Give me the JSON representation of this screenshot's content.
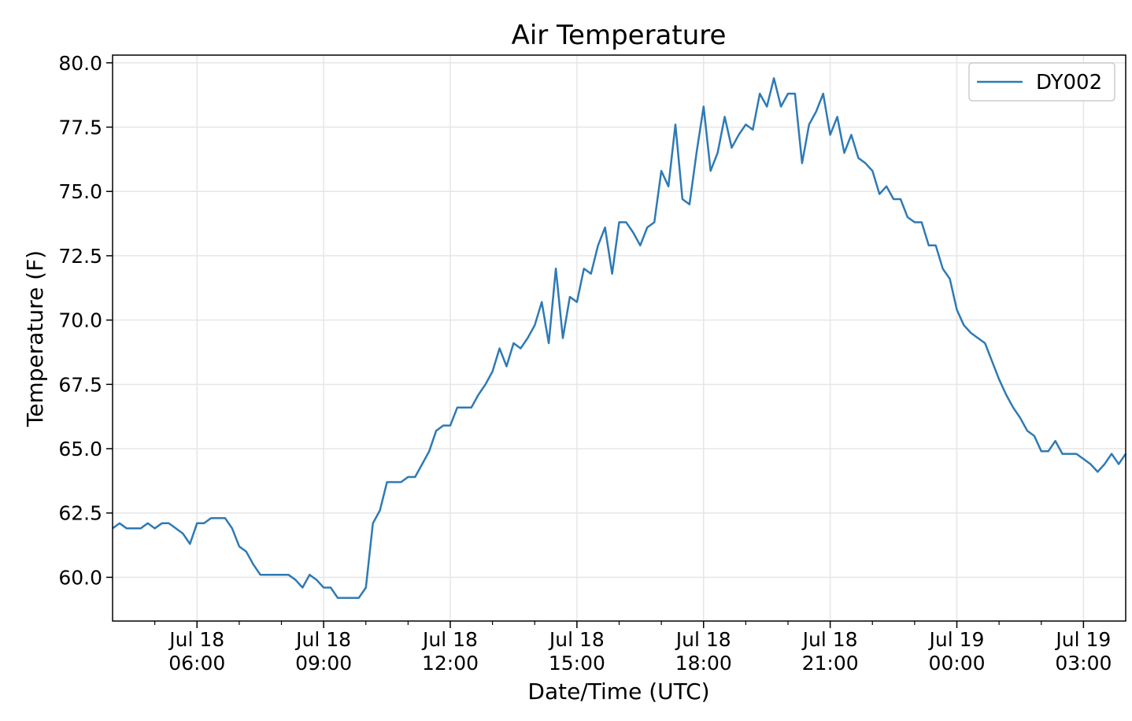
{
  "chart_data": {
    "type": "line",
    "title": "Air Temperature",
    "xlabel": "Date/Time (UTC)",
    "ylabel": "Temperature (F)",
    "x_start_label": "2023-07-18T04:00",
    "x_step_minutes": 10,
    "xlim_hours": [
      4.0,
      28.0
    ],
    "ylim": [
      58.3,
      80.3
    ],
    "yticks": [
      60.0,
      62.5,
      65.0,
      67.5,
      70.0,
      72.5,
      75.0,
      77.5,
      80.0
    ],
    "ytick_labels": [
      "60.0",
      "62.5",
      "65.0",
      "67.5",
      "70.0",
      "72.5",
      "75.0",
      "77.5",
      "80.0"
    ],
    "xticks": [
      {
        "hour": 6,
        "line1": "Jul 18",
        "line2": "06:00"
      },
      {
        "hour": 9,
        "line1": "Jul 18",
        "line2": "09:00"
      },
      {
        "hour": 12,
        "line1": "Jul 18",
        "line2": "12:00"
      },
      {
        "hour": 15,
        "line1": "Jul 18",
        "line2": "15:00"
      },
      {
        "hour": 18,
        "line1": "Jul 18",
        "line2": "18:00"
      },
      {
        "hour": 21,
        "line1": "Jul 18",
        "line2": "21:00"
      },
      {
        "hour": 24,
        "line1": "Jul 19",
        "line2": "00:00"
      },
      {
        "hour": 27,
        "line1": "Jul 19",
        "line2": "03:00"
      }
    ],
    "grid": true,
    "legend_position": "top-right",
    "series": [
      {
        "name": "DY002",
        "color": "#2e7ab5",
        "values": [
          61.9,
          62.1,
          61.9,
          61.9,
          61.9,
          62.1,
          61.9,
          62.1,
          62.1,
          61.9,
          61.7,
          61.3,
          62.1,
          62.1,
          62.3,
          62.3,
          62.3,
          61.9,
          61.2,
          61.0,
          60.5,
          60.1,
          60.1,
          60.1,
          60.1,
          60.1,
          59.9,
          59.6,
          60.1,
          59.9,
          59.6,
          59.6,
          59.2,
          59.2,
          59.2,
          59.2,
          59.6,
          62.1,
          62.6,
          63.7,
          63.7,
          63.7,
          63.9,
          63.9,
          64.4,
          64.9,
          65.7,
          65.9,
          65.9,
          66.6,
          66.6,
          66.6,
          67.1,
          67.5,
          68.0,
          68.9,
          68.2,
          69.1,
          68.9,
          69.3,
          69.8,
          70.7,
          69.1,
          72.0,
          69.3,
          70.9,
          70.7,
          72.0,
          71.8,
          72.9,
          73.6,
          71.8,
          73.8,
          73.8,
          73.4,
          72.9,
          73.6,
          73.8,
          75.8,
          75.2,
          77.6,
          74.7,
          74.5,
          76.5,
          78.3,
          75.8,
          76.5,
          77.9,
          76.7,
          77.2,
          77.6,
          77.4,
          78.8,
          78.3,
          79.4,
          78.3,
          78.8,
          78.8,
          76.1,
          77.6,
          78.1,
          78.8,
          77.2,
          77.9,
          76.5,
          77.2,
          76.3,
          76.1,
          75.8,
          74.9,
          75.2,
          74.7,
          74.7,
          74.0,
          73.8,
          73.8,
          72.9,
          72.9,
          72.0,
          71.6,
          70.4,
          69.8,
          69.5,
          69.3,
          69.1,
          68.4,
          67.7,
          67.1,
          66.6,
          66.2,
          65.7,
          65.5,
          64.9,
          64.9,
          65.3,
          64.8,
          64.8,
          64.8,
          64.6,
          64.4,
          64.1,
          64.4,
          64.8,
          64.4,
          64.8
        ]
      }
    ]
  }
}
